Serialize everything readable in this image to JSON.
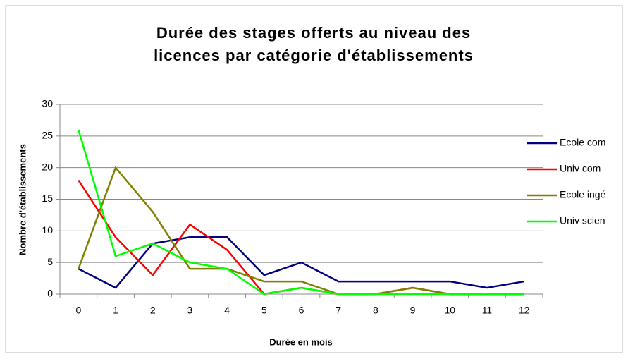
{
  "chart_data": {
    "type": "line",
    "title": [
      "Durée des stages offerts au niveau des",
      "licences par catégorie d'établissements"
    ],
    "x_label": "Durée en mois",
    "y_label": "Nombre d'établissements",
    "categories": [
      "0",
      "1",
      "2",
      "3",
      "4",
      "5",
      "6",
      "7",
      "8",
      "9",
      "10",
      "11",
      "12"
    ],
    "series": [
      {
        "name": "Ecole com",
        "color": "#000080",
        "values": [
          4,
          1,
          8,
          9,
          9,
          3,
          5,
          2,
          2,
          2,
          2,
          1,
          2
        ]
      },
      {
        "name": "Univ com",
        "color": "#ff0000",
        "values": [
          18,
          9,
          3,
          11,
          7,
          0,
          1,
          0,
          0,
          1,
          0,
          0,
          0
        ]
      },
      {
        "name": "Ecole ingé",
        "color": "#808000",
        "values": [
          4,
          20,
          13,
          4,
          4,
          2,
          2,
          0,
          0,
          1,
          0,
          0,
          0
        ]
      },
      {
        "name": "Univ scien",
        "color": "#00ff00",
        "values": [
          26,
          6,
          8,
          5,
          4,
          0,
          1,
          0,
          0,
          0,
          0,
          0,
          0
        ]
      }
    ],
    "ylim": [
      0,
      30
    ],
    "yticks": [
      0,
      5,
      10,
      15,
      20,
      25,
      30
    ],
    "grid": true,
    "legend": "right"
  }
}
